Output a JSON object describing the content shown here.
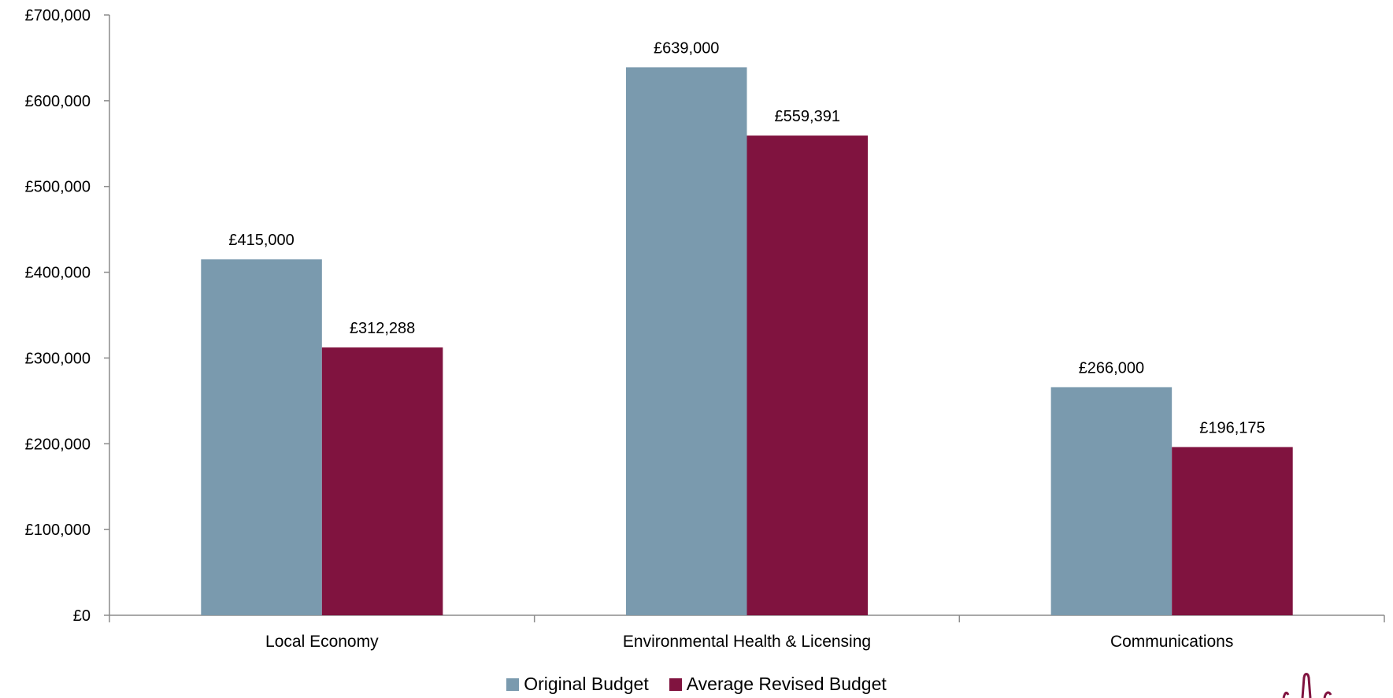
{
  "chart_data": {
    "type": "bar",
    "title": "",
    "xlabel": "",
    "ylabel": "",
    "categories": [
      "Local Economy",
      "Environmental Health & Licensing",
      "Communications"
    ],
    "series": [
      {
        "name": "Original Budget",
        "color": "#7a9aae",
        "values": [
          415000,
          639000,
          266000
        ],
        "labels": [
          "£415,000",
          "£639,000",
          "£266,000"
        ]
      },
      {
        "name": "Average Revised Budget",
        "color": "#80133f",
        "values": [
          312288,
          559391,
          196175
        ],
        "labels": [
          "£312,288",
          "£559,391",
          "£196,175"
        ]
      }
    ],
    "ylim": [
      0,
      700000
    ],
    "yticks": [
      0,
      100000,
      200000,
      300000,
      400000,
      500000,
      600000,
      700000
    ],
    "ytick_labels": [
      "£0",
      "£100,000",
      "£200,000",
      "£300,000",
      "£400,000",
      "£500,000",
      "£600,000",
      "£700,000"
    ],
    "grid": false,
    "legend_position": "bottom"
  },
  "logo": {
    "icon": "logo-icon",
    "color": "#80133f"
  }
}
